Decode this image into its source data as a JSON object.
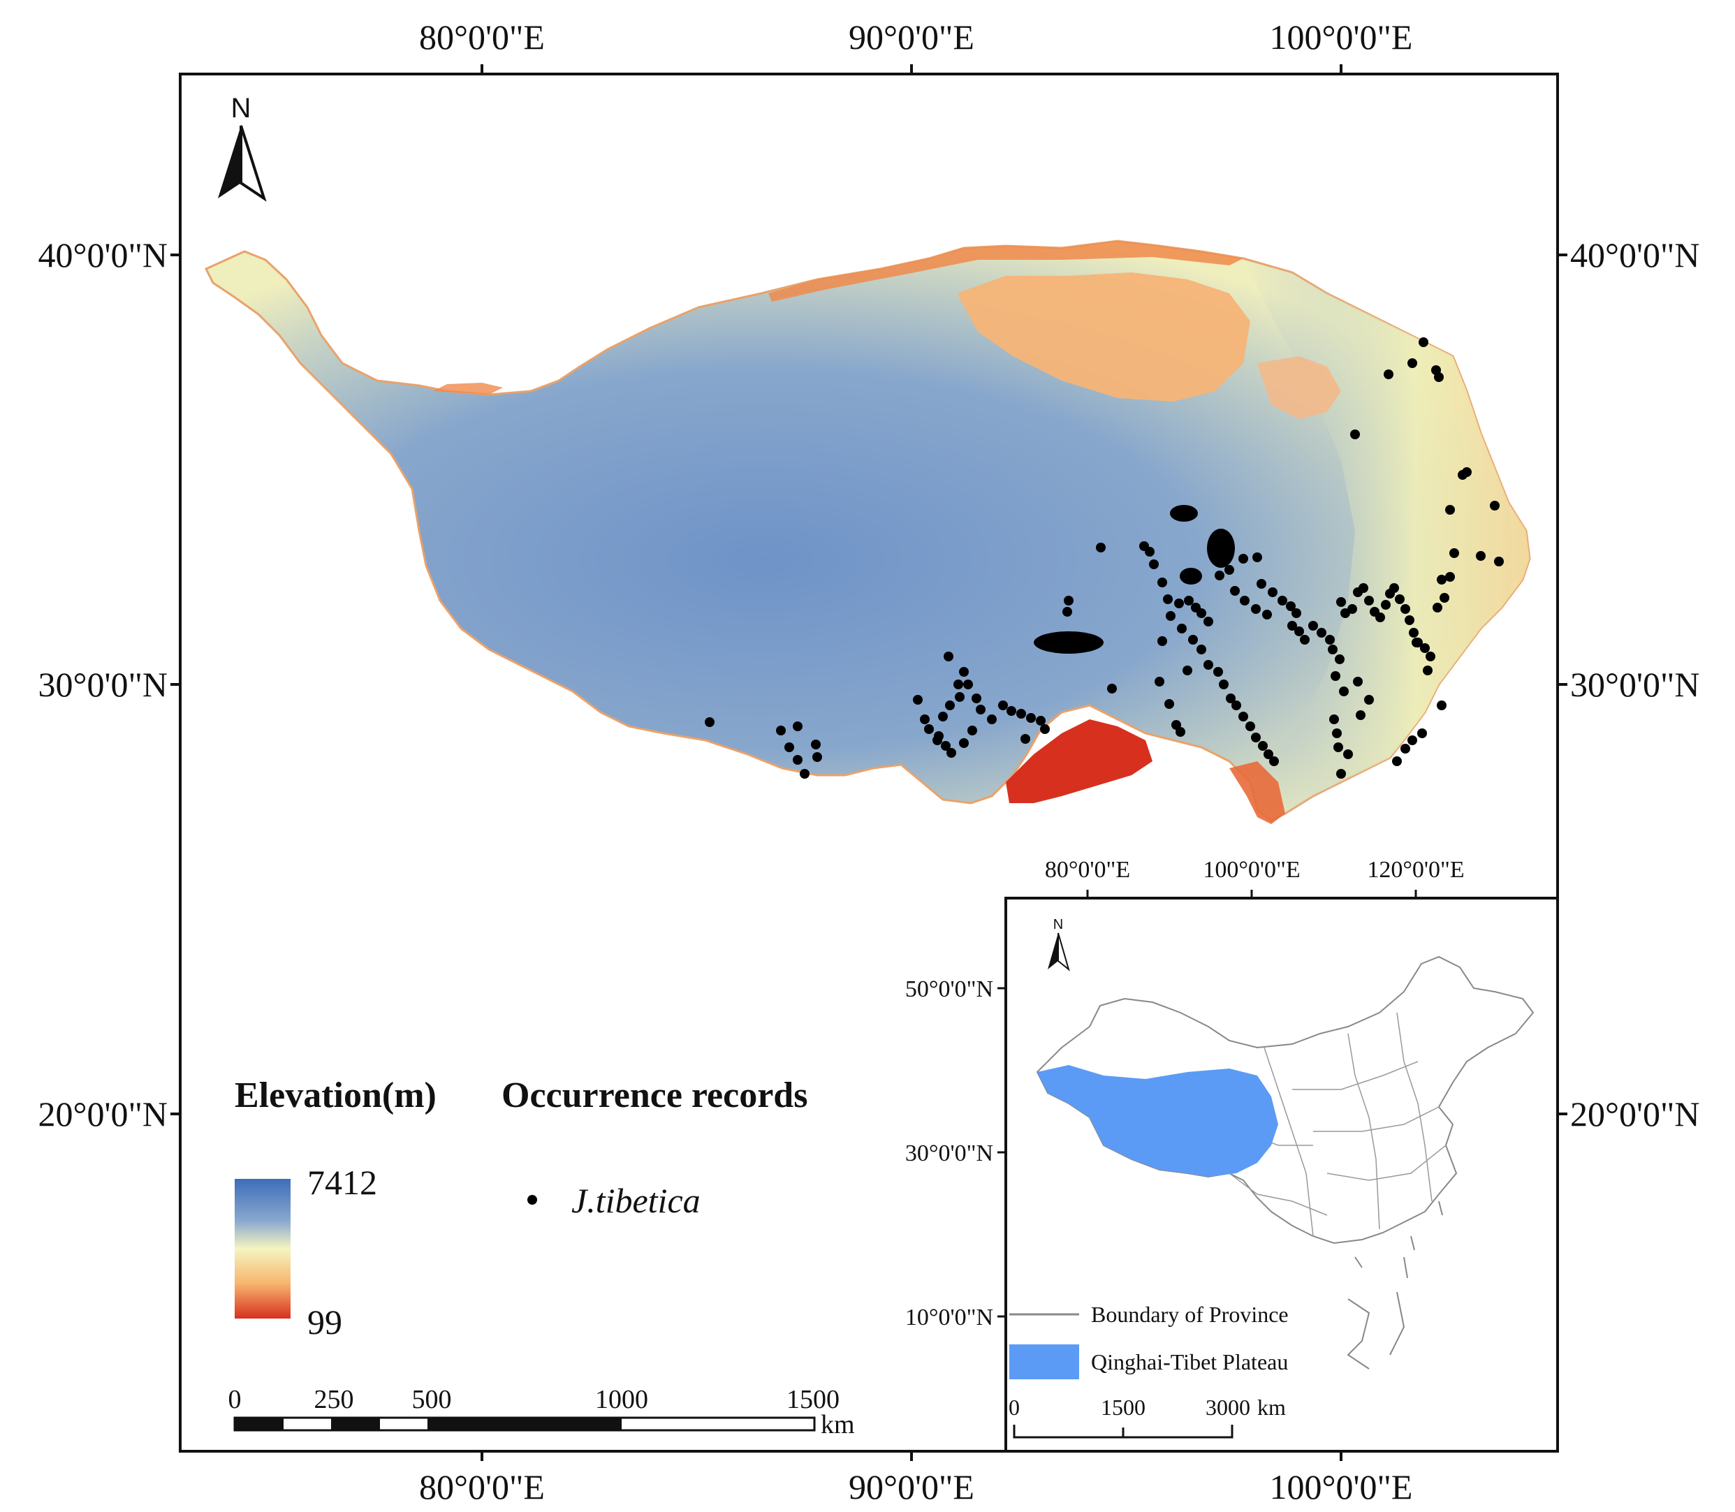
{
  "main_map": {
    "top_lon_labels": [
      "80°0'0\"E",
      "90°0'0\"E",
      "100°0'0\"E"
    ],
    "bottom_lon_labels": [
      "80°0'0\"E",
      "90°0'0\"E",
      "100°0'0\"E"
    ],
    "left_lat_labels": [
      "40°0'0\"N",
      "30°0'0\"N",
      "20°0'0\"N"
    ],
    "right_lat_labels": [
      "40°0'0\"N",
      "30°0'0\"N",
      "20°0'0\"N"
    ],
    "north_arrow_label": "N"
  },
  "legend": {
    "elevation_title": "Elevation(m)",
    "elevation_max": "7412",
    "elevation_min": "99",
    "elevation_colors": [
      "#3d6db8",
      "#8aa8cf",
      "#f5f5c0",
      "#f7b56e",
      "#d7301f"
    ],
    "occurrence_title": "Occurrence records",
    "species_name": "J.tibetica",
    "point_color": "#000000"
  },
  "scale_bar": {
    "labels": [
      "0",
      "250",
      "500",
      "1000",
      "1500"
    ],
    "unit": "km"
  },
  "inset_map": {
    "lon_labels": [
      "80°0'0\"E",
      "100°0'0\"E",
      "120°0'0\"E"
    ],
    "lat_labels": [
      "50°0'0\"N",
      "30°0'0\"N",
      "10°0'0\"N"
    ],
    "north_arrow_label": "N",
    "legend_boundary": "Boundary of Province",
    "legend_plateau": "Qinghai-Tibet Plateau",
    "plateau_color": "#5b9bf5",
    "scale_labels": [
      "0",
      "1500",
      "3000"
    ],
    "scale_unit": "km"
  }
}
